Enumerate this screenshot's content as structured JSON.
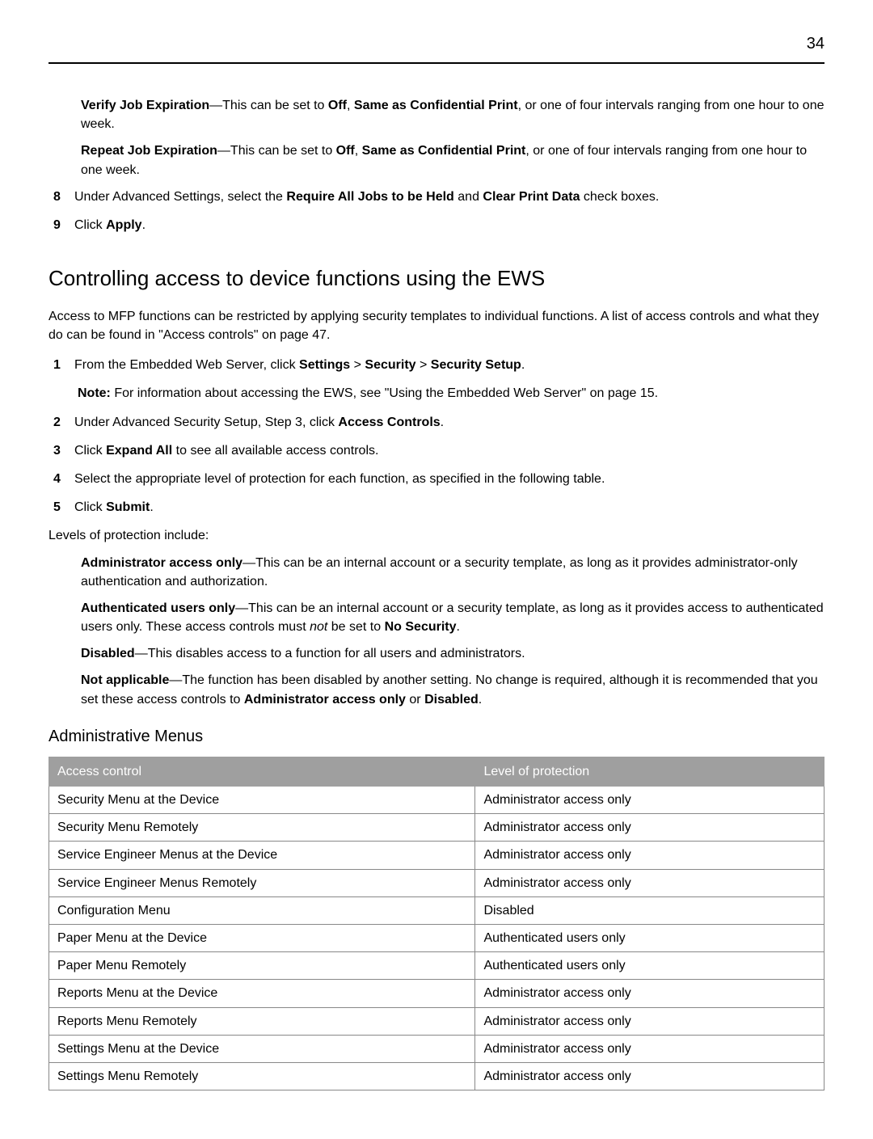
{
  "page_number": "34",
  "top_bullets": [
    {
      "lead": "Verify Job Expiration",
      "rest1": "—This can be set to ",
      "v1": "Off",
      "rest2": ", ",
      "v2": "Same as Confidential Print",
      "rest3": ", or one of four intervals ranging from one hour to one week."
    },
    {
      "lead": "Repeat Job Expiration",
      "rest1": "—This can be set to ",
      "v1": "Off",
      "rest2": ", ",
      "v2": "Same as Confidential Print",
      "rest3": ", or one of four intervals ranging from one hour to one week."
    }
  ],
  "step8": {
    "n": "8",
    "t1": "Under Advanced Settings, select the ",
    "b1": "Require All Jobs to be Held",
    "t2": " and ",
    "b2": "Clear Print Data",
    "t3": " check boxes."
  },
  "step9": {
    "n": "9",
    "t1": "Click ",
    "b1": "Apply",
    "t2": "."
  },
  "heading": "Controlling access to device functions using the EWS",
  "intro": "Access to MFP functions can be restricted by applying security templates to individual functions. A list of access controls and what they do can be found in \"Access controls\" on page 47.",
  "s1": {
    "n": "1",
    "t1": "From the Embedded Web Server, click ",
    "b1": "Settings",
    "t2": " > ",
    "b2": "Security",
    "t3": " > ",
    "b3": "Security Setup",
    "t4": "."
  },
  "s1_note": {
    "b": "Note: ",
    "t": "For information about accessing the EWS, see \"Using the Embedded Web Server\" on page 15."
  },
  "s2": {
    "n": "2",
    "t1": "Under Advanced Security Setup, Step 3, click ",
    "b1": "Access Controls",
    "t2": "."
  },
  "s3": {
    "n": "3",
    "t1": "Click ",
    "b1": "Expand All",
    "t2": " to see all available access controls."
  },
  "s4": {
    "n": "4",
    "t": "Select the appropriate level of protection for each function, as specified in the following table."
  },
  "s5": {
    "n": "5",
    "t1": "Click ",
    "b1": "Submit",
    "t2": "."
  },
  "levels_intro": "Levels of protection include:",
  "levels": [
    {
      "lead": "Administrator access only",
      "rest": "—This can be an internal account or a security template, as long as it provides administrator-only authentication and authorization."
    },
    {
      "lead": "Authenticated users only",
      "rest1": "—This can be an internal account or a security template, as long as it provides access to authenticated users only. These access controls must ",
      "i1": "not",
      "rest2": " be set to ",
      "b1": "No Security",
      "rest3": "."
    },
    {
      "lead": "Disabled",
      "rest": "—This disables access to a function for all users and administrators."
    },
    {
      "lead": "Not applicable",
      "rest1": "—The function has been disabled by another setting. No change is required, although it is recommended that you set these access controls to ",
      "b1": "Administrator access only",
      "rest2": " or ",
      "b2": "Disabled",
      "rest3": "."
    }
  ],
  "table_heading": "Administrative Menus",
  "table_headers": {
    "c1": "Access control",
    "c2": "Level of protection"
  },
  "table_rows": [
    {
      "ac": "Security Menu at the Device",
      "lvl": "Administrator access only"
    },
    {
      "ac": "Security Menu Remotely",
      "lvl": "Administrator access only"
    },
    {
      "ac": "Service Engineer Menus at the Device",
      "lvl": "Administrator access only"
    },
    {
      "ac": "Service Engineer Menus Remotely",
      "lvl": "Administrator access only"
    },
    {
      "ac": "Configuration Menu",
      "lvl": "Disabled"
    },
    {
      "ac": "Paper Menu at the Device",
      "lvl": "Authenticated users only"
    },
    {
      "ac": "Paper Menu Remotely",
      "lvl": "Authenticated users only"
    },
    {
      "ac": "Reports Menu at the Device",
      "lvl": "Administrator access only"
    },
    {
      "ac": "Reports Menu Remotely",
      "lvl": "Administrator access only"
    },
    {
      "ac": "Settings Menu at the Device",
      "lvl": "Administrator access only"
    },
    {
      "ac": "Settings Menu Remotely",
      "lvl": "Administrator access only"
    }
  ]
}
